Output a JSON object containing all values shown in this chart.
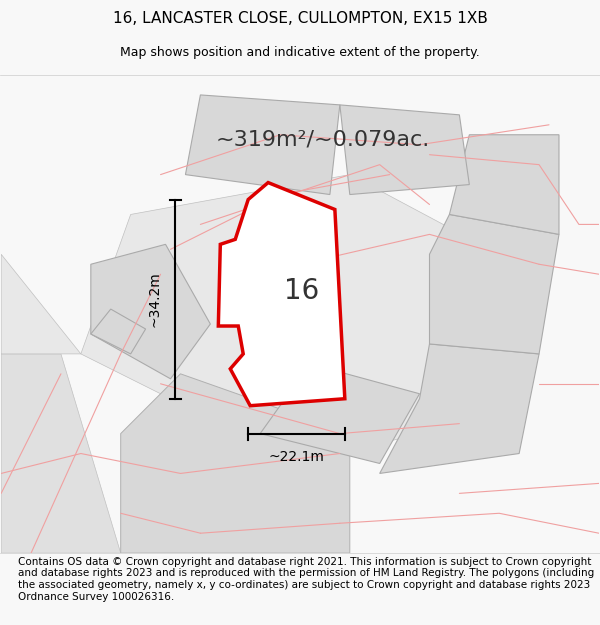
{
  "title_line1": "16, LANCASTER CLOSE, CULLOMPTON, EX15 1XB",
  "title_line2": "Map shows position and indicative extent of the property.",
  "area_text": "~319m²/~0.079ac.",
  "label_height": "~34.2m",
  "label_width": "~22.1m",
  "plot_number": "16",
  "footer_text": "Contains OS data © Crown copyright and database right 2021. This information is subject to Crown copyright and database rights 2023 and is reproduced with the permission of HM Land Registry. The polygons (including the associated geometry, namely x, y co-ordinates) are subject to Crown copyright and database rights 2023 Ordnance Survey 100026316.",
  "bg_color": "#f5f5f5",
  "map_bg": "#f0f0f0",
  "plot_fill": "#ffffff",
  "plot_edge_color": "#dd0000",
  "neighbor_fill": "#d8d8d8",
  "neighbor_edge_light": "#f0a0a0",
  "neighbor_edge_dark": "#b0b0b0",
  "road_color": "#e8e8e8",
  "dim_line_color": "#000000",
  "title_fontsize": 11,
  "subtitle_fontsize": 9,
  "area_fontsize": 16,
  "dim_fontsize": 10,
  "plot_label_fontsize": 20,
  "footer_fontsize": 7.5
}
